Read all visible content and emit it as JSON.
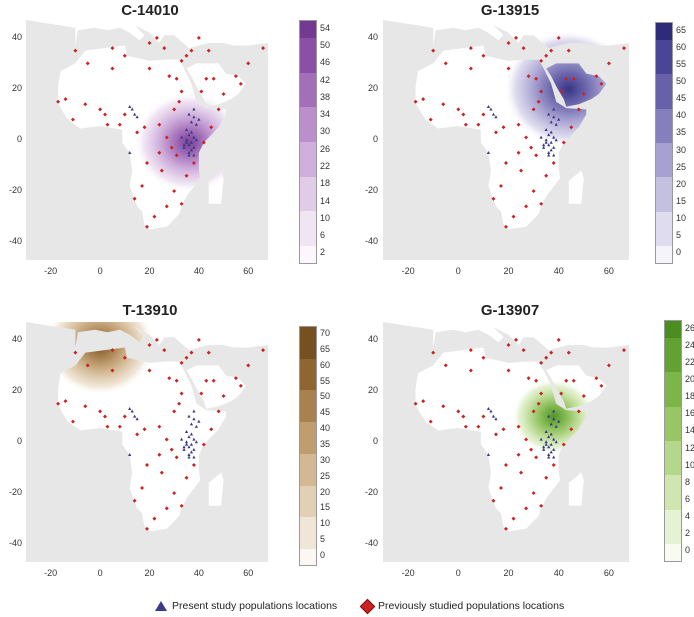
{
  "panels": [
    {
      "title": "C-14010",
      "colorscale": [
        "#fbf7fc",
        "#f0e6f3",
        "#e1cce8",
        "#cfb0dc",
        "#bb8fcc",
        "#a26fb8",
        "#8b4fa5",
        "#733a91"
      ],
      "colorbar_ticks": [
        "54",
        "50",
        "46",
        "42",
        "38",
        "34",
        "30",
        "26",
        "22",
        "18",
        "14",
        "10",
        "6",
        "2"
      ],
      "yticks": [
        "40",
        "20",
        "0",
        "-20",
        "-40"
      ],
      "xticks": [
        "-20",
        "0",
        "20",
        "40",
        "60"
      ],
      "hotspot": {
        "lon": 36,
        "lat": -1,
        "r": 12
      }
    },
    {
      "title": "G-13915",
      "colorscale": [
        "#f5f4fa",
        "#dedcee",
        "#c3c0e0",
        "#a6a1d0",
        "#857fbd",
        "#6661a9",
        "#4a4596",
        "#2e2b78"
      ],
      "colorbar_ticks": [
        "65",
        "60",
        "55",
        "50",
        "45",
        "40",
        "35",
        "30",
        "25",
        "20",
        "15",
        "10",
        "5",
        "0"
      ],
      "yticks": [
        "40",
        "20",
        "0",
        "-20",
        "-40"
      ],
      "xticks": [
        "-20",
        "0",
        "20",
        "40",
        "60"
      ],
      "hotspot": {
        "lon": 44,
        "lat": 20,
        "r": 14
      }
    },
    {
      "title": "T-13910",
      "colorscale": [
        "#fbf8f3",
        "#f0e6d7",
        "#e2d0b6",
        "#d2b893",
        "#bf9d6f",
        "#a9814e",
        "#8f6532",
        "#76501f"
      ],
      "colorbar_ticks": [
        "70",
        "65",
        "60",
        "55",
        "50",
        "45",
        "40",
        "35",
        "30",
        "25",
        "20",
        "15",
        "10",
        "5",
        "0"
      ],
      "yticks": [
        "40",
        "20",
        "0",
        "-20",
        "-40"
      ],
      "xticks": [
        "-20",
        "0",
        "20",
        "40",
        "60"
      ],
      "hotspot": {
        "lon": 0,
        "lat": 38,
        "r": 12
      }
    },
    {
      "title": "G-13907",
      "colorscale": [
        "#f7fbf2",
        "#e5f2d4",
        "#cfe6b1",
        "#b5d78b",
        "#98c667",
        "#7cb548",
        "#62a232",
        "#4c8d22"
      ],
      "colorbar_ticks": [
        "26",
        "24",
        "22",
        "20",
        "18",
        "16",
        "14",
        "12",
        "10",
        "8",
        "6",
        "4",
        "2",
        "0"
      ],
      "yticks": [
        "40",
        "20",
        "0",
        "-20",
        "-40"
      ],
      "xticks": [
        "-20",
        "0",
        "20",
        "40",
        "60"
      ],
      "hotspot": {
        "lon": 38,
        "lat": 10,
        "r": 9
      }
    }
  ],
  "legend": {
    "present": "Present study populations locations",
    "previous": "Previously studied populations locations",
    "present_color": "#3b3a8a",
    "previous_color": "#cc2222"
  },
  "map_colors": {
    "land": "#ffffff",
    "sea": "#e7e7e7"
  }
}
